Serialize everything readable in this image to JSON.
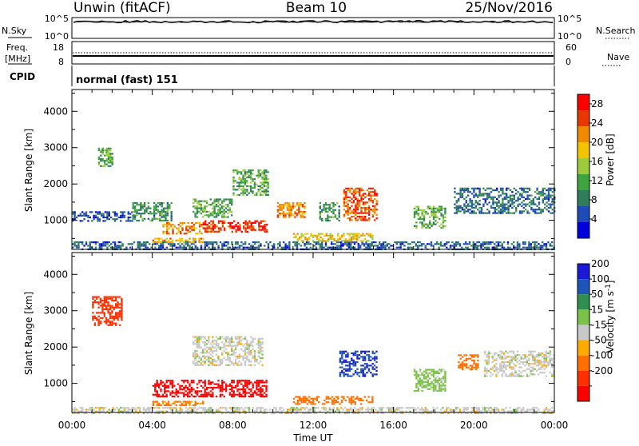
{
  "header": {
    "station": "Unwin (fitACF)",
    "beam": "Beam 10",
    "date": "25/Nov/2016"
  },
  "nsky_panel": {
    "left_label": "N.Sky",
    "left_ticks": [
      "10^5",
      "10^0"
    ],
    "right_label": "N.Search",
    "right_ticks": [
      "10^5",
      "10^0"
    ]
  },
  "freq_panel": {
    "left_label_1": "Freq.",
    "left_label_2": "[MHz]",
    "left_ticks": [
      "18",
      "8"
    ],
    "right_label": "Nave",
    "right_ticks": [
      "60",
      "0"
    ]
  },
  "cpid": {
    "label": "CPID",
    "value": "normal (fast) 151"
  },
  "colors": {
    "power_scale": [
      "#0000dd",
      "#1f4bb8",
      "#2f7d5a",
      "#3fa33f",
      "#9ccc3c",
      "#f5c400",
      "#f08a00",
      "#e83800",
      "#ff0000"
    ],
    "velocity_scale": [
      "#1a1ad6",
      "#1e56b8",
      "#2f8f4f",
      "#7cc24a",
      "#c8c8c8",
      "#ffaa00",
      "#ff7000",
      "#ff3000",
      "#ff0000"
    ]
  },
  "chart_data": [
    {
      "type": "heatmap",
      "panel": "power",
      "ylabel": "Slant Range [km]",
      "xlabel": "Time UT",
      "x_ticks": [
        "00:00",
        "04:00",
        "08:00",
        "12:00",
        "16:00",
        "20:00",
        "00:00"
      ],
      "x_range_hours": [
        0,
        24
      ],
      "y_ticks": [
        1000,
        2000,
        3000,
        4000
      ],
      "ylim": [
        200,
        4600
      ],
      "colorbar": {
        "label": "Power [dB]",
        "ticks": [
          4,
          8,
          12,
          16,
          20,
          24,
          28
        ],
        "range": [
          0,
          30
        ]
      },
      "regions": [
        {
          "t0": 0.0,
          "t1": 24.0,
          "r0": 200,
          "r1": 420,
          "value": 6
        },
        {
          "t0": 0.0,
          "t1": 3.0,
          "r0": 1000,
          "r1": 1250,
          "value": 5
        },
        {
          "t0": 1.3,
          "t1": 2.0,
          "r0": 2500,
          "r1": 3000,
          "value": 12
        },
        {
          "t0": 3.0,
          "t1": 5.0,
          "r0": 1000,
          "r1": 1500,
          "value": 10
        },
        {
          "t0": 4.0,
          "t1": 6.5,
          "r0": 420,
          "r1": 520,
          "value": 20
        },
        {
          "t0": 4.5,
          "t1": 6.5,
          "r0": 650,
          "r1": 950,
          "value": 22
        },
        {
          "t0": 6.5,
          "t1": 9.7,
          "r0": 700,
          "r1": 1000,
          "value": 26
        },
        {
          "t0": 6.0,
          "t1": 8.0,
          "r0": 1100,
          "r1": 1600,
          "value": 12
        },
        {
          "t0": 8.0,
          "t1": 9.8,
          "r0": 1700,
          "r1": 2400,
          "value": 12
        },
        {
          "t0": 10.2,
          "t1": 11.6,
          "r0": 1100,
          "r1": 1500,
          "value": 22
        },
        {
          "t0": 11.0,
          "t1": 15.0,
          "r0": 450,
          "r1": 650,
          "value": 18
        },
        {
          "t0": 12.3,
          "t1": 13.3,
          "r0": 1000,
          "r1": 1500,
          "value": 10
        },
        {
          "t0": 13.5,
          "t1": 15.2,
          "r0": 1000,
          "r1": 1900,
          "value": 24
        },
        {
          "t0": 17.0,
          "t1": 18.6,
          "r0": 800,
          "r1": 1400,
          "value": 12
        },
        {
          "t0": 19.0,
          "t1": 24.0,
          "r0": 1200,
          "r1": 1900,
          "value": 7
        }
      ]
    },
    {
      "type": "heatmap",
      "panel": "velocity",
      "ylabel": "Slant Range [km]",
      "xlabel": "Time UT",
      "x_ticks": [
        "00:00",
        "04:00",
        "08:00",
        "12:00",
        "16:00",
        "20:00",
        "00:00"
      ],
      "x_range_hours": [
        0,
        24
      ],
      "y_ticks": [
        1000,
        2000,
        3000,
        4000
      ],
      "ylim": [
        200,
        4600
      ],
      "colorbar": {
        "label": "Velocity [m s^-1]",
        "ticks": [
          200,
          100,
          50,
          15,
          -15,
          -50,
          -100,
          -200
        ]
      },
      "regions": [
        {
          "t0": 0.0,
          "t1": 24.0,
          "r0": 200,
          "r1": 350,
          "value": 0
        },
        {
          "t0": 4.0,
          "t1": 6.5,
          "r0": 420,
          "r1": 520,
          "value": -60
        },
        {
          "t0": 4.0,
          "t1": 9.7,
          "r0": 650,
          "r1": 1100,
          "value": -250
        },
        {
          "t0": 6.0,
          "t1": 9.5,
          "r0": 1500,
          "r1": 2300,
          "value": 0
        },
        {
          "t0": 11.0,
          "t1": 15.0,
          "r0": 450,
          "r1": 650,
          "value": -80
        },
        {
          "t0": 13.3,
          "t1": 15.2,
          "r0": 1200,
          "r1": 1900,
          "value": 200
        },
        {
          "t0": 1.0,
          "t1": 2.5,
          "r0": 2600,
          "r1": 3400,
          "value": -150
        },
        {
          "t0": 17.0,
          "t1": 18.6,
          "r0": 800,
          "r1": 1400,
          "value": 30
        },
        {
          "t0": 19.2,
          "t1": 20.2,
          "r0": 1400,
          "r1": 1800,
          "value": -80
        },
        {
          "t0": 20.5,
          "t1": 24.0,
          "r0": 1200,
          "r1": 1900,
          "value": 0
        }
      ]
    }
  ]
}
